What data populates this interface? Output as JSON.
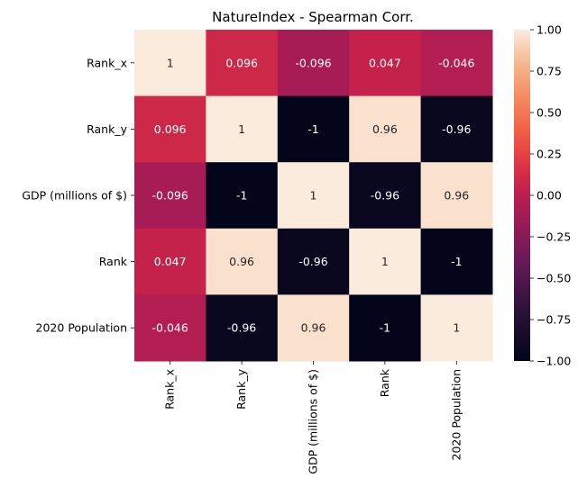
{
  "chart_data": {
    "type": "heatmap",
    "title": "NatureIndex - Spearman Corr.",
    "xlabel": "",
    "ylabel": "",
    "rows": [
      "Rank_x",
      "Rank_y",
      "GDP (millions of $)",
      "Rank",
      "2020 Population"
    ],
    "columns": [
      "Rank_x",
      "Rank_y",
      "GDP (millions of $)",
      "Rank",
      "2020 Population"
    ],
    "values": [
      [
        1,
        0.096,
        -0.096,
        0.047,
        -0.046
      ],
      [
        0.096,
        1,
        -1,
        0.96,
        -0.96
      ],
      [
        -0.096,
        -1,
        1,
        -0.96,
        0.96
      ],
      [
        0.047,
        0.96,
        -0.96,
        1,
        -1
      ],
      [
        -0.046,
        -0.96,
        0.96,
        -1,
        1
      ]
    ],
    "annotations": [
      [
        "1",
        "0.096",
        "-0.096",
        "0.047",
        "-0.046"
      ],
      [
        "0.096",
        "1",
        "-1",
        "0.96",
        "-0.96"
      ],
      [
        "-0.096",
        "-1",
        "1",
        "-0.96",
        "0.96"
      ],
      [
        "0.047",
        "0.96",
        "-0.96",
        "1",
        "-1"
      ],
      [
        "-0.046",
        "-0.96",
        "0.96",
        "-1",
        "1"
      ]
    ],
    "vmin": -1,
    "vmax": 1,
    "colormap": "rocket",
    "colorbar": {
      "ticks": [
        1.0,
        0.75,
        0.5,
        0.25,
        0.0,
        -0.25,
        -0.5,
        -0.75,
        -1.0
      ],
      "tick_labels": [
        "1.00",
        "0.75",
        "0.50",
        "0.25",
        "0.00",
        "−0.25",
        "−0.50",
        "−0.75",
        "−1.00"
      ],
      "placement": "right"
    },
    "grid": false
  }
}
